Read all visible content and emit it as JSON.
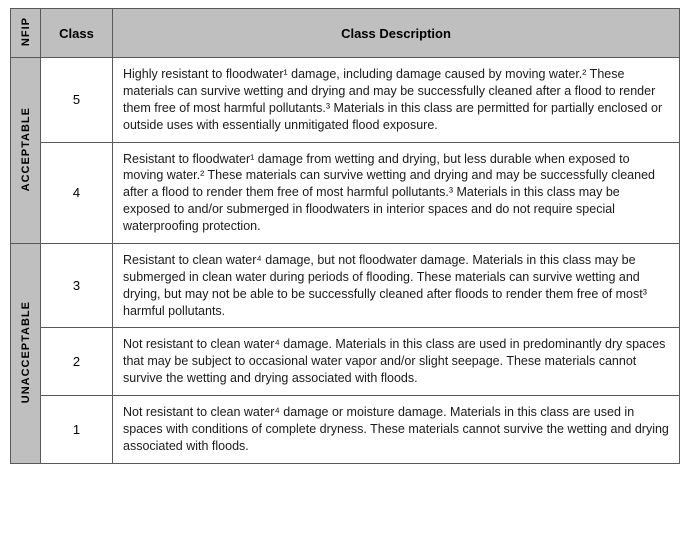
{
  "header": {
    "nfip": "NFIP",
    "class": "Class",
    "desc": "Class Description"
  },
  "groups": [
    {
      "label": "ACCEPTABLE",
      "rows": [
        {
          "class": "5",
          "desc": "Highly resistant to floodwater¹ damage, including damage caused by moving water.² These materials can survive wetting and drying and may be successfully cleaned after a flood to render them free of most harmful pollutants.³ Materials in this class are permitted for partially enclosed or outside uses with essentially unmitigated flood exposure."
        },
        {
          "class": "4",
          "desc": "Resistant to floodwater¹ damage from wetting and drying, but less durable when exposed to moving water.² These materials can survive wetting and drying and may be successfully cleaned after a flood to render them free of most harmful pollutants.³ Materials in this class may be exposed to and/or submerged in floodwaters in interior spaces and do not require special waterproofing protection."
        }
      ]
    },
    {
      "label": "UNACCEPTABLE",
      "rows": [
        {
          "class": "3",
          "desc": "Resistant to clean water⁴ damage, but not floodwater damage. Materials in this class may be submerged in clean water during periods of flooding. These materials can survive wetting and drying, but may not be able to be successfully cleaned after floods to render them free of most³ harmful pollutants."
        },
        {
          "class": "2",
          "desc": "Not resistant to clean water⁴ damage. Materials in this class are used in predominantly dry spaces that may be subject to occasional water vapor and/or slight seepage. These materials cannot survive the wetting and drying associated with floods."
        },
        {
          "class": "1",
          "desc": "Not resistant to clean water⁴ damage or moisture damage. Materials in this class are used in spaces with conditions of complete dryness. These materials cannot survive the wetting and drying associated with floods."
        }
      ]
    }
  ],
  "style": {
    "header_bg": "#bfbfbf",
    "border_color": "#595959",
    "text_color": "#1a1a1a",
    "body_fontsize": 12.5,
    "header_fontsize": 13
  }
}
